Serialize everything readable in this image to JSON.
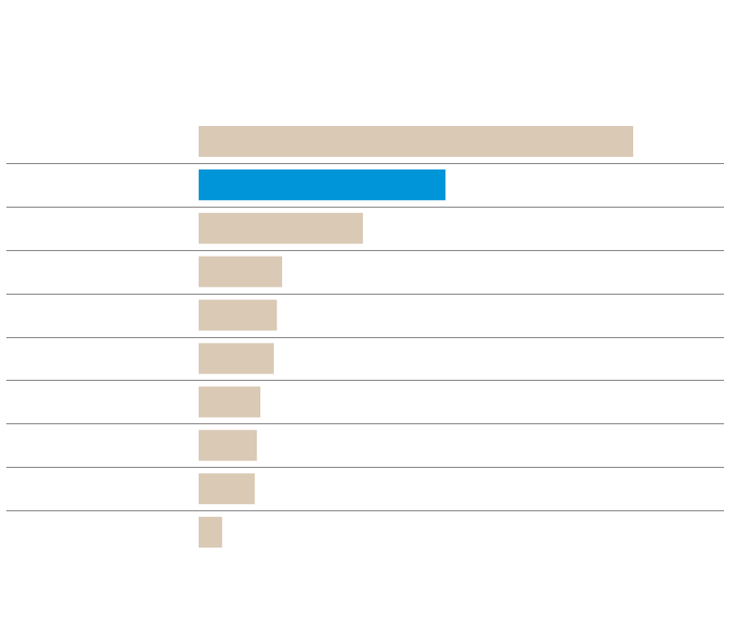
{
  "chart_data": {
    "type": "bar",
    "orientation": "horizontal",
    "categories": [
      null,
      null,
      null,
      null,
      null,
      null,
      null,
      null,
      null,
      null
    ],
    "values": [
      100,
      56.8,
      37.8,
      19.2,
      18,
      17.3,
      14.2,
      13.4,
      12.9,
      5.4
    ],
    "colors": [
      "#d9c9b5",
      "#0095d9",
      "#d9c9b5",
      "#d9c9b5",
      "#d9c9b5",
      "#d9c9b5",
      "#d9c9b5",
      "#d9c9b5",
      "#d9c9b5",
      "#d9c9b5"
    ]
  }
}
